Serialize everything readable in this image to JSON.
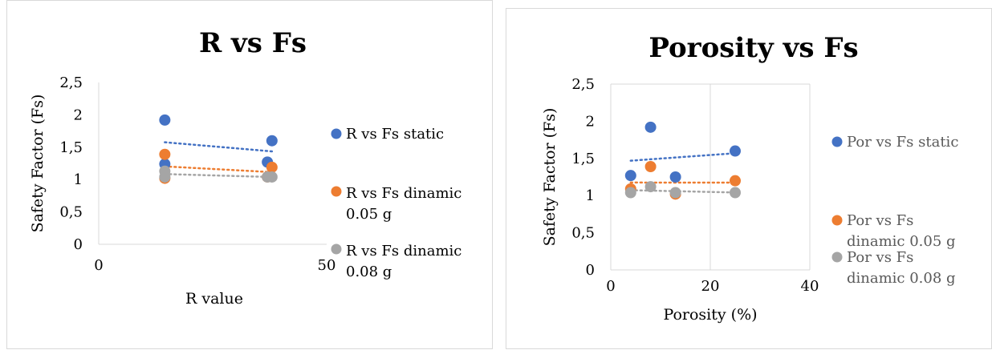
{
  "chart_data": [
    {
      "type": "scatter",
      "title": "R vs Fs",
      "xlabel": "R value",
      "ylabel": "Safety Factor (Fs)",
      "xlim": [
        0,
        50
      ],
      "ylim": [
        0,
        2.5
      ],
      "x_ticks": [
        "0",
        "50"
      ],
      "y_ticks": [
        "0",
        "0,5",
        "1",
        "1,5",
        "2",
        "2,5"
      ],
      "grid": false,
      "legend_position": "right",
      "trendlines": true,
      "series": [
        {
          "name": "R vs Fs static",
          "color": "#4472C4",
          "x": [
            14.5,
            14.5,
            37,
            38
          ],
          "y": [
            1.92,
            1.24,
            1.27,
            1.6
          ]
        },
        {
          "name": "R vs Fs dinamic 0.05 g",
          "color": "#ED7D31",
          "x": [
            14.5,
            14.5,
            37,
            38
          ],
          "y": [
            1.39,
            1.02,
            1.04,
            1.19
          ]
        },
        {
          "name": "R vs Fs dinamic 0.08 g",
          "color": "#A5A5A5",
          "x": [
            14.5,
            14.5,
            37,
            38
          ],
          "y": [
            1.13,
            1.04,
            1.04,
            1.04
          ]
        }
      ]
    },
    {
      "type": "scatter",
      "title": "Porosity vs Fs",
      "xlabel": "Porosity (%)",
      "ylabel": "Safety Factor (Fs)",
      "xlim": [
        0,
        40
      ],
      "ylim": [
        0,
        2.5
      ],
      "x_ticks": [
        "0",
        "20",
        "40"
      ],
      "y_ticks": [
        "0",
        "0,5",
        "1",
        "1,5",
        "2",
        "2,5"
      ],
      "grid": true,
      "legend_position": "right",
      "trendlines": true,
      "series": [
        {
          "name": "Por vs Fs static",
          "color": "#4472C4",
          "x": [
            4,
            8,
            13,
            25
          ],
          "y": [
            1.27,
            1.92,
            1.25,
            1.6
          ]
        },
        {
          "name": "Por vs Fs dinamic 0.05 g",
          "color": "#ED7D31",
          "x": [
            4,
            8,
            13,
            25
          ],
          "y": [
            1.09,
            1.39,
            1.02,
            1.2
          ]
        },
        {
          "name": "Por vs Fs dinamic 0.08 g",
          "color": "#A5A5A5",
          "x": [
            4,
            8,
            13,
            25
          ],
          "y": [
            1.04,
            1.12,
            1.04,
            1.04
          ]
        }
      ]
    }
  ]
}
